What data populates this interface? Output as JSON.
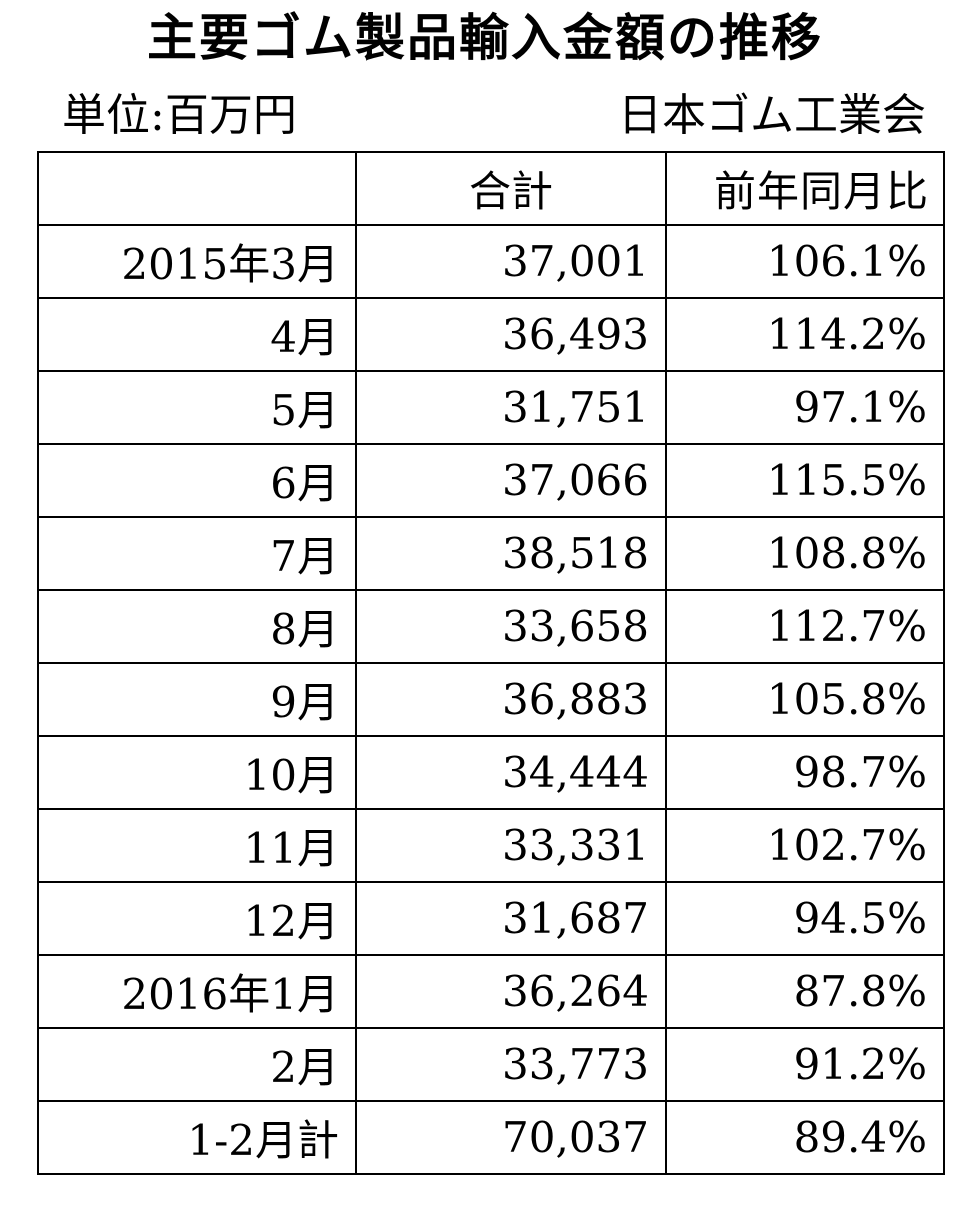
{
  "title": "主要ゴム製品輸入金額の推移",
  "unit": "単位:百万円",
  "source": "日本ゴム工業会",
  "table": {
    "headers": [
      "",
      "合計",
      "前年同月比"
    ],
    "rows": [
      {
        "period": "2015年3月",
        "total": "37,001",
        "yoy": "106.1%"
      },
      {
        "period": "4月",
        "total": "36,493",
        "yoy": "114.2%"
      },
      {
        "period": "5月",
        "total": "31,751",
        "yoy": "97.1%"
      },
      {
        "period": "6月",
        "total": "37,066",
        "yoy": "115.5%"
      },
      {
        "period": "7月",
        "total": "38,518",
        "yoy": "108.8%"
      },
      {
        "period": "8月",
        "total": "33,658",
        "yoy": "112.7%"
      },
      {
        "period": "9月",
        "total": "36,883",
        "yoy": "105.8%"
      },
      {
        "period": "10月",
        "total": "34,444",
        "yoy": "98.7%"
      },
      {
        "period": "11月",
        "total": "33,331",
        "yoy": "102.7%"
      },
      {
        "period": "12月",
        "total": "31,687",
        "yoy": "94.5%"
      },
      {
        "period": "2016年1月",
        "total": "36,264",
        "yoy": "87.8%"
      },
      {
        "period": "2月",
        "total": "33,773",
        "yoy": "91.2%"
      },
      {
        "period": "1-2月計",
        "total": "70,037",
        "yoy": "89.4%"
      }
    ]
  }
}
